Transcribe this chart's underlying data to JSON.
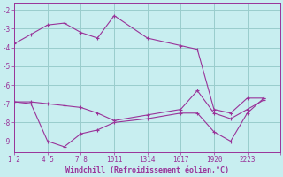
{
  "xlabel": "Windchill (Refroidissement éolien,°C)",
  "background_color": "#c8eef0",
  "line_color": "#993399",
  "grid_color": "#99cccc",
  "xlim": [
    0,
    8
  ],
  "ylim": [
    -9.6,
    -1.6
  ],
  "yticks": [
    -2,
    -3,
    -4,
    -5,
    -6,
    -7,
    -8,
    -9
  ],
  "xtick_positions": [
    0,
    1,
    2,
    3,
    4,
    5,
    6,
    7,
    8
  ],
  "xtick_labels": [
    "1 2",
    "4 5",
    "7 8",
    "1011",
    "1314",
    "1617",
    "1920",
    "2223",
    ""
  ],
  "line1_x": [
    0,
    0.5,
    1,
    1.5,
    2,
    2.5,
    3,
    4,
    5,
    5.5,
    6,
    6.5,
    7,
    7.5
  ],
  "line1_y": [
    -3.8,
    -3.3,
    -2.8,
    -2.7,
    -3.2,
    -3.5,
    -2.3,
    -3.5,
    -3.9,
    -4.1,
    -7.3,
    -7.5,
    -6.7,
    -6.7
  ],
  "line2_x": [
    0,
    0.5,
    1,
    1.5,
    2,
    2.5,
    3,
    4,
    5,
    5.5,
    6,
    6.5,
    7,
    7.5
  ],
  "line2_y": [
    -6.9,
    -6.9,
    -7.0,
    -7.1,
    -7.2,
    -7.5,
    -7.9,
    -7.6,
    -7.3,
    -6.3,
    -7.5,
    -7.8,
    -7.3,
    -6.8
  ],
  "line3_x": [
    0,
    0.5,
    1,
    1.5,
    2,
    2.5,
    3,
    4,
    5,
    5.5,
    6,
    6.5,
    7,
    7.5
  ],
  "line3_y": [
    -6.9,
    -7.0,
    -9.0,
    -9.3,
    -8.6,
    -8.4,
    -8.0,
    -7.8,
    -7.5,
    -7.5,
    -8.5,
    -9.0,
    -7.5,
    -6.7
  ]
}
